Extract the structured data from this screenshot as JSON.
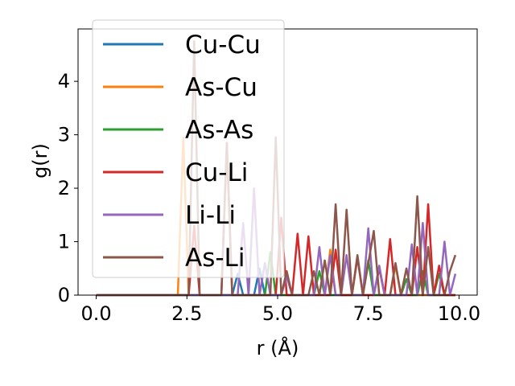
{
  "chart_data": {
    "type": "line",
    "xlabel": "r (Å)",
    "ylabel": "g(r)",
    "xlim": [
      -0.5,
      10.5
    ],
    "ylim": [
      0,
      4.98
    ],
    "grid": false,
    "legend_placement": "top-left",
    "x_ticks": [
      "0.0",
      "2.5",
      "5.0",
      "7.5",
      "10.0"
    ],
    "x_tick_values": [
      0,
      2.5,
      5,
      7.5,
      10
    ],
    "y_ticks": [
      "0",
      "1",
      "2",
      "3",
      "4"
    ],
    "y_tick_values": [
      0,
      1,
      2,
      3,
      4
    ],
    "series": [
      {
        "name": "Cu-Cu",
        "color": "#1f77b4",
        "points": [
          [
            0,
            0
          ],
          [
            3.75,
            0
          ],
          [
            3.9,
            0.4
          ],
          [
            4.05,
            0
          ],
          [
            4.35,
            0
          ],
          [
            4.5,
            0.5
          ],
          [
            4.65,
            0
          ],
          [
            9.9,
            0
          ]
        ]
      },
      {
        "name": "As-Cu",
        "color": "#ff7f0e",
        "points": [
          [
            0,
            0
          ],
          [
            2.25,
            0
          ],
          [
            2.4,
            2.95
          ],
          [
            2.55,
            0
          ],
          [
            6.3,
            0
          ],
          [
            6.45,
            0.85
          ],
          [
            6.6,
            0
          ],
          [
            8.1,
            0
          ],
          [
            8.25,
            0.55
          ],
          [
            8.4,
            0
          ],
          [
            9.9,
            0
          ]
        ]
      },
      {
        "name": "As-As",
        "color": "#2ca02c",
        "points": [
          [
            0,
            0
          ],
          [
            4.65,
            0
          ],
          [
            4.8,
            0.8
          ],
          [
            4.95,
            0
          ],
          [
            6.0,
            0
          ],
          [
            6.15,
            0.45
          ],
          [
            6.3,
            0
          ],
          [
            7.35,
            0
          ],
          [
            7.5,
            0.65
          ],
          [
            7.65,
            0
          ],
          [
            8.4,
            0
          ],
          [
            8.55,
            0.3
          ],
          [
            8.7,
            0
          ],
          [
            8.85,
            0
          ],
          [
            9.0,
            0.45
          ],
          [
            9.15,
            0
          ],
          [
            9.3,
            0
          ],
          [
            9.45,
            0.4
          ],
          [
            9.6,
            0
          ],
          [
            9.9,
            0
          ]
        ]
      },
      {
        "name": "Cu-Li",
        "color": "#d62728",
        "points": [
          [
            0,
            0
          ],
          [
            2.55,
            0
          ],
          [
            2.7,
            1.3
          ],
          [
            2.85,
            0
          ],
          [
            3.45,
            0
          ],
          [
            3.6,
            2.85
          ],
          [
            3.75,
            0
          ],
          [
            4.95,
            0
          ],
          [
            5.1,
            1.45
          ],
          [
            5.25,
            0
          ],
          [
            5.4,
            0
          ],
          [
            5.55,
            1.15
          ],
          [
            5.7,
            0
          ],
          [
            5.85,
            1.1
          ],
          [
            6.0,
            0
          ],
          [
            6.45,
            0
          ],
          [
            6.6,
            0.85
          ],
          [
            6.75,
            0
          ],
          [
            7.05,
            0
          ],
          [
            7.2,
            0.7
          ],
          [
            7.35,
            0
          ],
          [
            7.65,
            0
          ],
          [
            7.8,
            0.5
          ],
          [
            7.95,
            0
          ],
          [
            8.1,
            1.05
          ],
          [
            8.25,
            0
          ],
          [
            8.7,
            0
          ],
          [
            8.85,
            0.9
          ],
          [
            9.0,
            0
          ],
          [
            9.15,
            1.7
          ],
          [
            9.3,
            0
          ],
          [
            9.45,
            0.55
          ],
          [
            9.6,
            0
          ],
          [
            9.9,
            0
          ]
        ]
      },
      {
        "name": "Li-Li",
        "color": "#9467bd",
        "points": [
          [
            0,
            0
          ],
          [
            3.9,
            0
          ],
          [
            4.05,
            1.35
          ],
          [
            4.2,
            0
          ],
          [
            4.35,
            2.0
          ],
          [
            4.5,
            0
          ],
          [
            4.65,
            0.6
          ],
          [
            4.8,
            0
          ],
          [
            5.1,
            0
          ],
          [
            5.25,
            0.35
          ],
          [
            5.4,
            0
          ],
          [
            6.0,
            0
          ],
          [
            6.15,
            0.9
          ],
          [
            6.3,
            0
          ],
          [
            6.45,
            0.75
          ],
          [
            6.6,
            0
          ],
          [
            6.75,
            0
          ],
          [
            6.9,
            0.75
          ],
          [
            7.05,
            0
          ],
          [
            7.35,
            0
          ],
          [
            7.5,
            1.25
          ],
          [
            7.65,
            0
          ],
          [
            7.8,
            0.55
          ],
          [
            7.95,
            0
          ],
          [
            8.55,
            0
          ],
          [
            8.7,
            0.95
          ],
          [
            8.85,
            0
          ],
          [
            9.0,
            1.35
          ],
          [
            9.15,
            0
          ],
          [
            9.45,
            0
          ],
          [
            9.6,
            1.0
          ],
          [
            9.75,
            0
          ],
          [
            9.9,
            0.4
          ]
        ]
      },
      {
        "name": "As-Li",
        "color": "#8c564b",
        "points": [
          [
            0,
            0
          ],
          [
            2.55,
            0
          ],
          [
            2.7,
            4.75
          ],
          [
            2.85,
            0
          ],
          [
            3.45,
            0
          ],
          [
            3.6,
            2.85
          ],
          [
            3.75,
            0
          ],
          [
            4.8,
            0
          ],
          [
            4.95,
            2.95
          ],
          [
            5.1,
            0
          ],
          [
            5.25,
            0.45
          ],
          [
            5.4,
            0
          ],
          [
            5.85,
            0
          ],
          [
            6.0,
            0.45
          ],
          [
            6.15,
            0
          ],
          [
            6.3,
            0.65
          ],
          [
            6.45,
            0
          ],
          [
            6.6,
            1.7
          ],
          [
            6.75,
            0
          ],
          [
            6.9,
            1.6
          ],
          [
            7.05,
            0
          ],
          [
            7.2,
            0.75
          ],
          [
            7.35,
            0
          ],
          [
            7.65,
            1.2
          ],
          [
            7.8,
            0
          ],
          [
            8.1,
            0
          ],
          [
            8.25,
            0.6
          ],
          [
            8.4,
            0
          ],
          [
            8.55,
            0.5
          ],
          [
            8.7,
            0
          ],
          [
            8.85,
            1.85
          ],
          [
            9.0,
            0
          ],
          [
            9.15,
            0.9
          ],
          [
            9.3,
            0
          ],
          [
            9.6,
            0
          ],
          [
            9.75,
            0.45
          ],
          [
            9.9,
            0.75
          ]
        ]
      }
    ]
  }
}
